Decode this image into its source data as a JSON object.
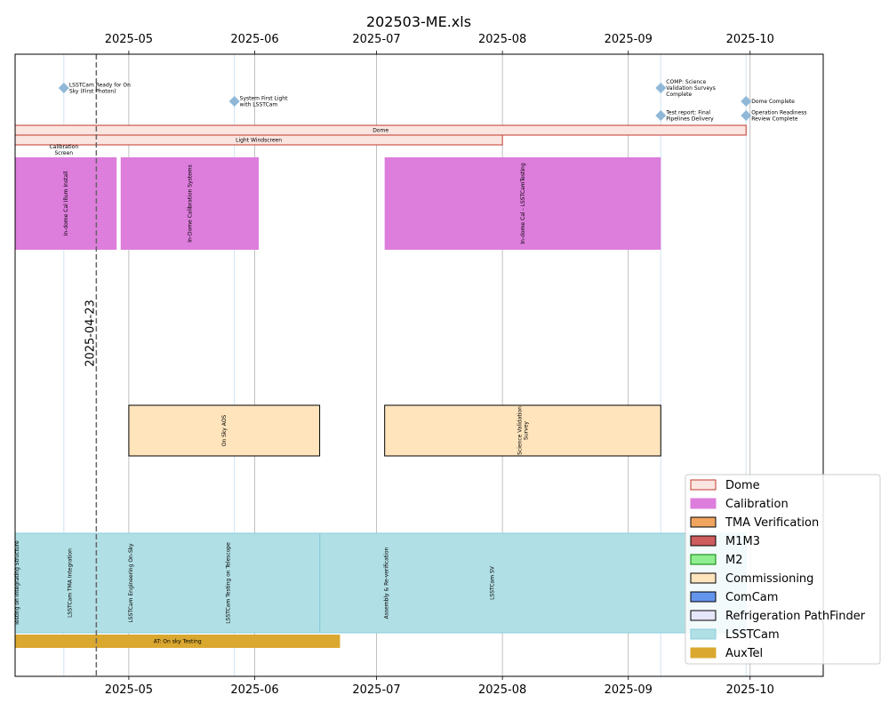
{
  "chart_data": {
    "type": "gantt",
    "title": "202503-ME.xls",
    "xlim": [
      "2025-04-03",
      "2025-10-19"
    ],
    "x_ticks": [
      "2025-05",
      "2025-06",
      "2025-07",
      "2025-08",
      "2025-09",
      "2025-10"
    ],
    "x_tick_dates": [
      "2025-05-01",
      "2025-06-01",
      "2025-07-01",
      "2025-08-01",
      "2025-09-01",
      "2025-10-01"
    ],
    "today": {
      "date": "2025-04-23",
      "label": "2025-04-23"
    },
    "colors": {
      "Dome": "#fbe5e1",
      "Dome_edge": "#c0392b",
      "Calibration": "#dd7ddc",
      "TMA Verification": "#f0a460",
      "M1M3": "#cd5c5c",
      "M2": "#90ee90",
      "Commissioning": "#ffe4bc",
      "ComCam": "#6495ed",
      "Refrigeration PathFinder": "#e6e6fa",
      "LSSTCam": "#b0dfe5",
      "LSSTCam_edge": "#88ccdb",
      "AuxTel": "#daa82f",
      "milestone": "#8fb8d8",
      "milestone_line": "#cfe3f2",
      "grid": "#b0b0b0"
    },
    "milestones": [
      {
        "date": "2025-04-15",
        "label": "LSSTCam Ready for On Sky (First Photon)",
        "lines": [
          "LSSTCam Ready for On",
          "Sky (First Photon)"
        ],
        "row": 0
      },
      {
        "date": "2025-05-27",
        "label": "System First Light with LSSTCam",
        "lines": [
          "System First Light",
          "with LSSTCam"
        ],
        "row": 1
      },
      {
        "date": "2025-09-09",
        "label": "COMP: Science Validation Surveys Complete",
        "lines": [
          "COMP: Science",
          "Validation Surveys",
          "Complete"
        ],
        "row": 0
      },
      {
        "date": "2025-09-09",
        "label": "Test report: Final Pipelines Delivery",
        "lines": [
          "Test report: Final",
          "Pipelines Delivery"
        ],
        "row": 2
      },
      {
        "date": "2025-09-30",
        "label": "Dome Complete",
        "lines": [
          "Dome Complete"
        ],
        "row": 1
      },
      {
        "date": "2025-09-30",
        "label": "Operation Readiness Review Complete",
        "lines": [
          "Operation Readiness",
          "Review Complete"
        ],
        "row": 2
      }
    ],
    "tasks": [
      {
        "label": "Dome",
        "category": "Dome",
        "start": "2025-04-03",
        "end": "2025-09-30",
        "lane": "dome1",
        "text_orientation": "horizontal"
      },
      {
        "label": "Light Windscreen",
        "category": "Dome",
        "start": "2025-04-03",
        "end": "2025-08-01",
        "lane": "dome2",
        "text_orientation": "horizontal"
      },
      {
        "label": "In-dome Cal Illum Install",
        "category": "Calibration",
        "start": "2025-04-03",
        "end": "2025-04-28",
        "lane": "cal",
        "text_orientation": "vertical"
      },
      {
        "label": "In-Dome Calibration Systems",
        "category": "Calibration",
        "start": "2025-04-29",
        "end": "2025-06-02",
        "lane": "cal",
        "text_orientation": "vertical"
      },
      {
        "label": "In-dome Cal - LSSTCamTesting",
        "category": "Calibration",
        "start": "2025-07-03",
        "end": "2025-09-09",
        "lane": "cal",
        "text_orientation": "vertical"
      },
      {
        "label": "On Sky AOS",
        "category": "Commissioning",
        "start": "2025-05-01",
        "end": "2025-06-17",
        "lane": "comm",
        "text_orientation": "vertical"
      },
      {
        "label": "Science Validation Survey",
        "category": "Commissioning",
        "start": "2025-07-03",
        "end": "2025-09-09",
        "lane": "comm",
        "text_orientation": "vertical",
        "lines": [
          "Science Validation",
          "Survey"
        ]
      },
      {
        "label": "LSSTCam SV",
        "category": "LSSTCam",
        "start": "2025-04-03",
        "end": "2025-09-30",
        "lane": "lsst",
        "text_orientation": "vertical",
        "text_date": "2025-07-29"
      },
      {
        "label": "Assembly & Re-verification",
        "category": "LSSTCam",
        "start": "2025-06-17",
        "end": "2025-09-30",
        "lane": "lsst",
        "text_orientation": "vertical",
        "text_date": "2025-07-03"
      },
      {
        "label": "Testing on Integrating Structure",
        "category": "LSSTCam",
        "start": "2025-04-03",
        "end": "2025-06-17",
        "lane": "lsst",
        "text_orientation": "vertical",
        "text_date": "2025-04-03"
      },
      {
        "label": "LSSTCam TMA Integration",
        "category": "LSSTCam",
        "start": "2025-04-03",
        "end": "2025-06-17",
        "lane": "lsst",
        "text_orientation": "vertical",
        "text_date": "2025-04-16"
      },
      {
        "label": "LSSTCam Engineering On-Sky",
        "category": "LSSTCam",
        "start": "2025-04-03",
        "end": "2025-06-17",
        "lane": "lsst",
        "text_orientation": "vertical",
        "text_date": "2025-05-01"
      },
      {
        "label": "LSSTCam Testing on Telescope",
        "category": "LSSTCam",
        "start": "2025-04-03",
        "end": "2025-06-17",
        "lane": "lsst",
        "text_orientation": "vertical",
        "text_date": "2025-05-25"
      },
      {
        "label": "AT: On sky Testing",
        "category": "AuxTel",
        "start": "2025-04-03",
        "end": "2025-06-22",
        "lane": "aux",
        "text_orientation": "horizontal"
      }
    ],
    "annotations": [
      {
        "text": "Calibration Screen",
        "lines": [
          "Calibration",
          "Screen"
        ],
        "date": "2025-04-15"
      }
    ],
    "legend": {
      "placement": "lower-right",
      "entries": [
        {
          "name": "Dome",
          "fill": "#fbe5e1",
          "edge": "#c0392b"
        },
        {
          "name": "Calibration",
          "fill": "#dd7ddc",
          "edge": "#dd7ddc"
        },
        {
          "name": "TMA Verification",
          "fill": "#f0a460",
          "edge": "#000000"
        },
        {
          "name": "M1M3",
          "fill": "#cd5c5c",
          "edge": "#000000"
        },
        {
          "name": "M2",
          "fill": "#90ee90",
          "edge": "#008000"
        },
        {
          "name": "Commissioning",
          "fill": "#ffe4bc",
          "edge": "#000000"
        },
        {
          "name": "ComCam",
          "fill": "#6495ed",
          "edge": "#000000"
        },
        {
          "name": "Refrigeration PathFinder",
          "fill": "#e6e6fa",
          "edge": "#000000"
        },
        {
          "name": "LSSTCam",
          "fill": "#b0dfe5",
          "edge": "#88ccdb"
        },
        {
          "name": "AuxTel",
          "fill": "#daa82f",
          "edge": "#daa82f"
        }
      ]
    }
  }
}
